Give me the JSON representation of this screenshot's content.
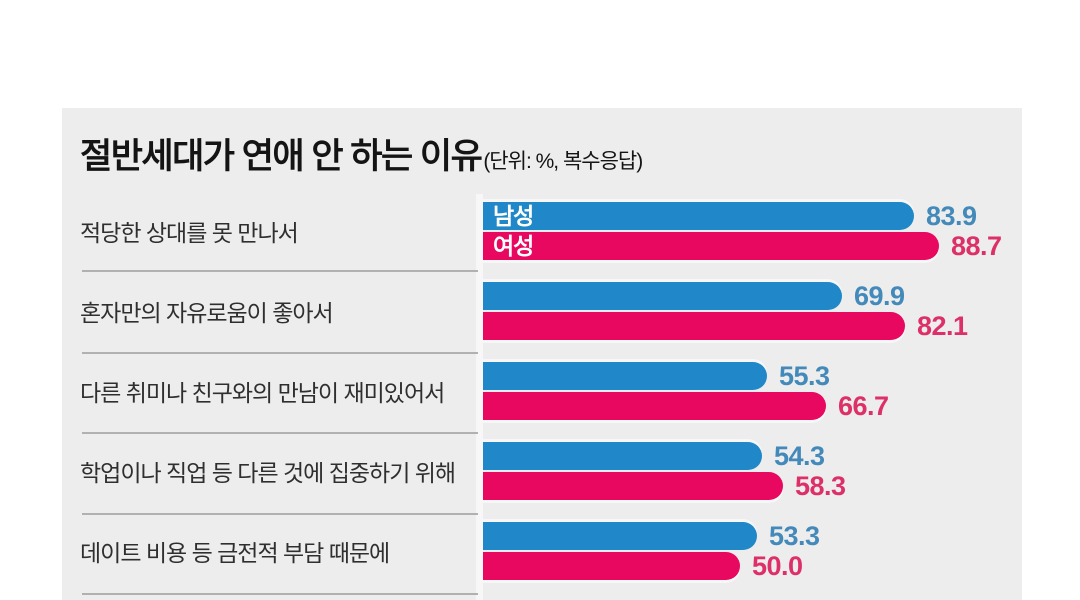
{
  "header": {
    "title": "절반세대가 연애 안 하는 이유",
    "unit_note": "(단위: %, 복수응답)"
  },
  "colors": {
    "page_background": "#ffffff",
    "panel_background": "#ecedec",
    "male_bar": "#2088c8",
    "female_bar": "#e8085f",
    "male_value_text": "#4389ba",
    "female_value_text": "#dd2f68",
    "bar_inner_label_text": "#ffffff",
    "divider": "#b0b2b1",
    "category_text": "#2f2f2f",
    "title_text": "#141414",
    "bar_glow": "#f6f7f6"
  },
  "chart_data": {
    "type": "bar",
    "orientation": "horizontal",
    "value_unit": "%",
    "response_note": "복수응답",
    "categories": [
      "적당한 상대를 못 만나서",
      "혼자만의 자유로움이 좋아서",
      "다른 취미나 친구와의 만남이 재미있어서",
      "학업이나 직업 등 다른 것에 집중하기 위해",
      "데이트 비용 등 금전적 부담 때문에"
    ],
    "series": [
      {
        "name": "남성",
        "values": [
          83.9,
          69.9,
          55.3,
          54.3,
          53.3
        ]
      },
      {
        "name": "여성",
        "values": [
          88.7,
          82.1,
          66.7,
          58.3,
          50.0
        ]
      }
    ],
    "xlim": [
      0,
      100
    ],
    "grid": false,
    "legend_position": "inside-first-bars",
    "value_labels_shown": true
  }
}
